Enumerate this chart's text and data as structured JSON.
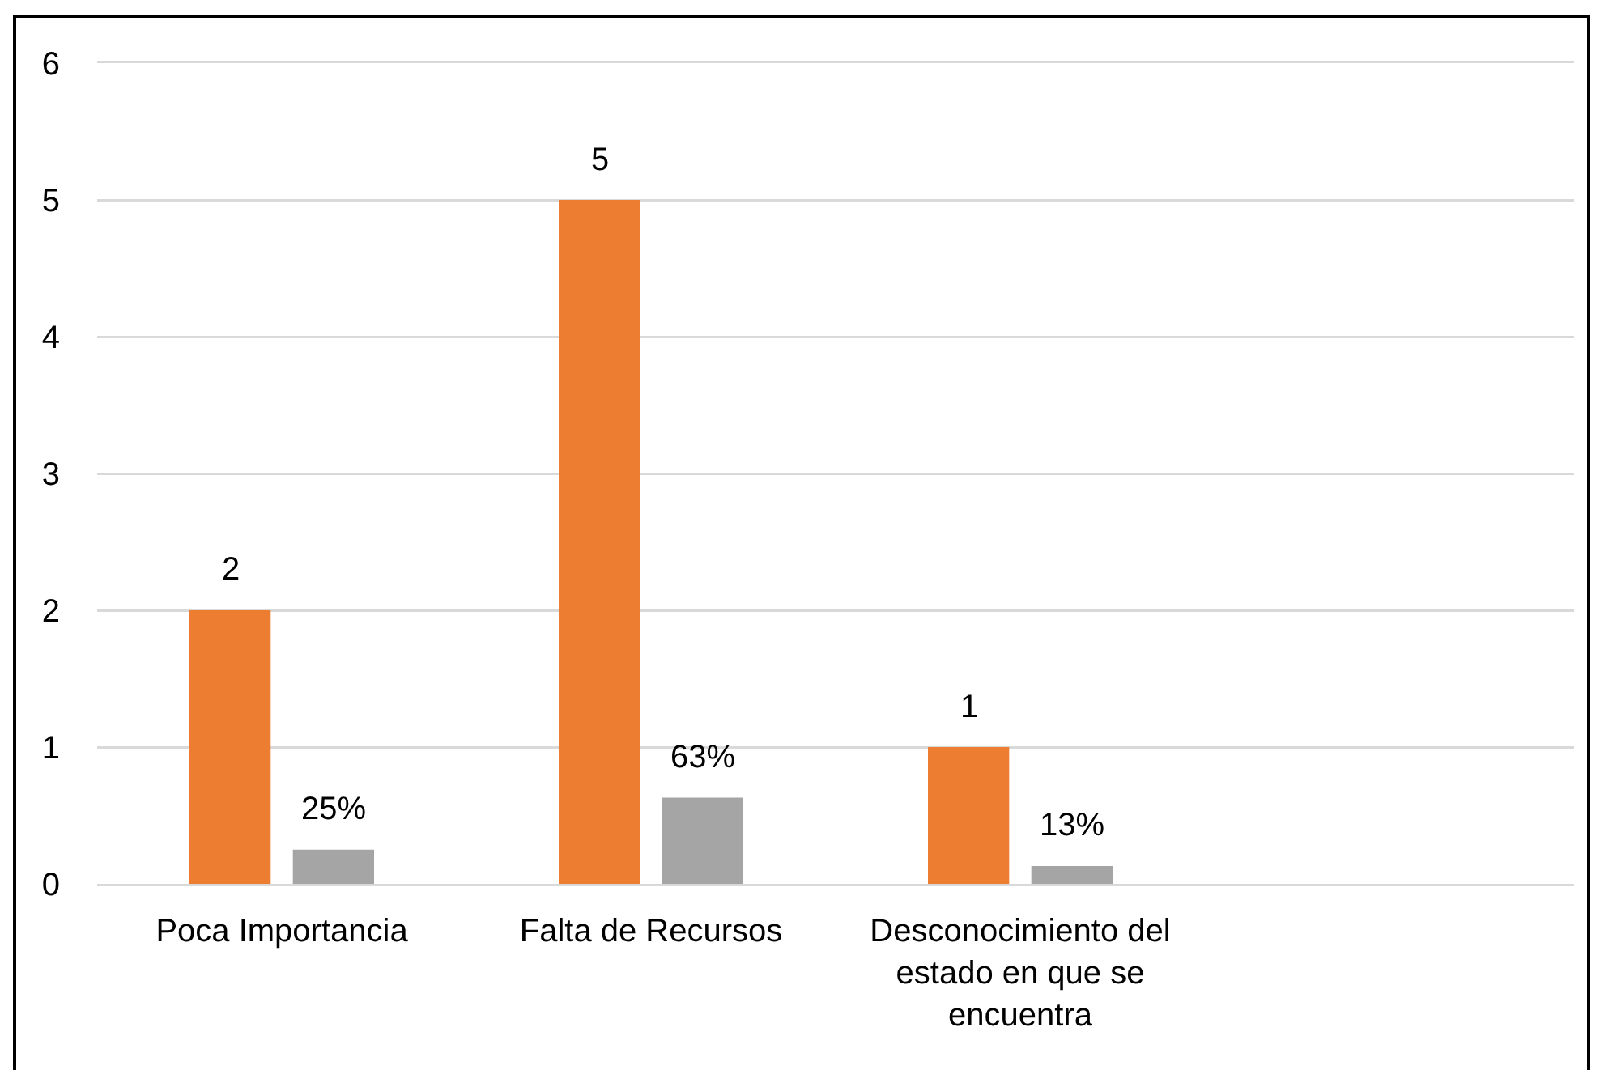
{
  "chart_data": {
    "type": "bar",
    "categories": [
      "Poca Importancia",
      "Falta de Recursos",
      "Desconocimiento del estado en que se encuentra",
      null
    ],
    "series": [
      {
        "color": "#ed7d31",
        "values": [
          2,
          5,
          1,
          null
        ],
        "value_labels": [
          "2",
          "5",
          "1",
          null
        ]
      },
      {
        "color": "#a5a5a5",
        "values": [
          0.25,
          0.63,
          0.13,
          null
        ],
        "value_labels": [
          "25%",
          "63%",
          "13%",
          null
        ]
      }
    ],
    "ylim": [
      0,
      6
    ],
    "yticks": [
      0,
      1,
      2,
      3,
      4,
      5,
      6
    ],
    "grid": "y"
  }
}
